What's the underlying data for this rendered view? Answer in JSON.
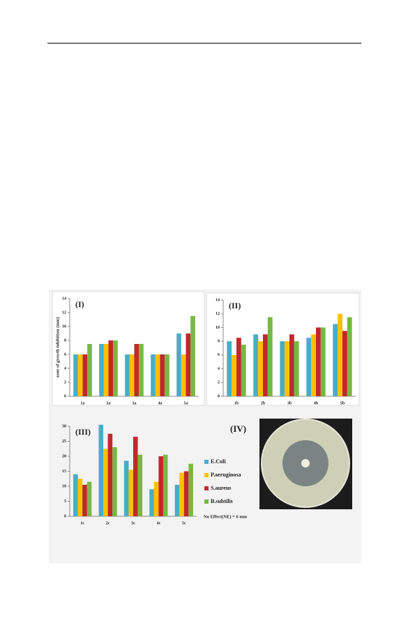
{
  "chart_data": [
    {
      "type": "bar",
      "label": "(I)",
      "y_label": "zone of growth inhibition (mm)",
      "categories": [
        "1a",
        "2a",
        "3a",
        "4a",
        "5a"
      ],
      "series": [
        {
          "color": "#4bacc6",
          "values": [
            6,
            7.5,
            6,
            6,
            9
          ]
        },
        {
          "color": "#ffc000",
          "values": [
            6,
            7.5,
            6,
            6,
            6
          ]
        },
        {
          "color": "#c0282d",
          "values": [
            6,
            8,
            7.5,
            6,
            9
          ]
        },
        {
          "color": "#77b843",
          "values": [
            7.5,
            8,
            7.5,
            6,
            11.5
          ]
        }
      ],
      "ylim": [
        0,
        14
      ],
      "yticks": [
        0,
        2,
        4,
        6,
        8,
        10,
        12,
        14
      ]
    },
    {
      "type": "bar",
      "label": "(II)",
      "categories": [
        "1b",
        "2b",
        "3b",
        "4b",
        "5b"
      ],
      "series": [
        {
          "color": "#4bacc6",
          "values": [
            8,
            9,
            8,
            8.5,
            10.5
          ]
        },
        {
          "color": "#ffc000",
          "values": [
            6,
            8,
            8,
            9,
            12
          ]
        },
        {
          "color": "#c0282d",
          "values": [
            8.5,
            9,
            9,
            10,
            9.5
          ]
        },
        {
          "color": "#77b843",
          "values": [
            7.5,
            11.5,
            8,
            10,
            11.5
          ]
        }
      ],
      "ylim": [
        0,
        14
      ],
      "yticks": [
        0,
        2,
        4,
        6,
        8,
        10,
        12,
        14
      ]
    },
    {
      "type": "bar",
      "label": "(III)",
      "categories": [
        "1c",
        "2c",
        "3c",
        "4c",
        "5c"
      ],
      "series": [
        {
          "name": "E.Coli",
          "color": "#4bacc6",
          "values": [
            14,
            30.5,
            18.5,
            9,
            10.5
          ]
        },
        {
          "name": "P.aeruginosa",
          "color": "#ffc000",
          "values": [
            12.5,
            22.5,
            15.5,
            11.5,
            14.5
          ]
        },
        {
          "name": "S.aureus",
          "color": "#c0282d",
          "values": [
            10.5,
            27.5,
            26.5,
            20,
            15
          ]
        },
        {
          "name": "B.subtilis",
          "color": "#77b843",
          "values": [
            11.5,
            23,
            20.5,
            20.5,
            17.5
          ]
        }
      ],
      "ylim": [
        0,
        30
      ],
      "yticks": [
        0,
        5,
        10,
        15,
        20,
        25,
        30
      ]
    }
  ],
  "figure": {
    "photo_label": "(IV)",
    "note": "No Effect(NE) = 6 mm"
  }
}
